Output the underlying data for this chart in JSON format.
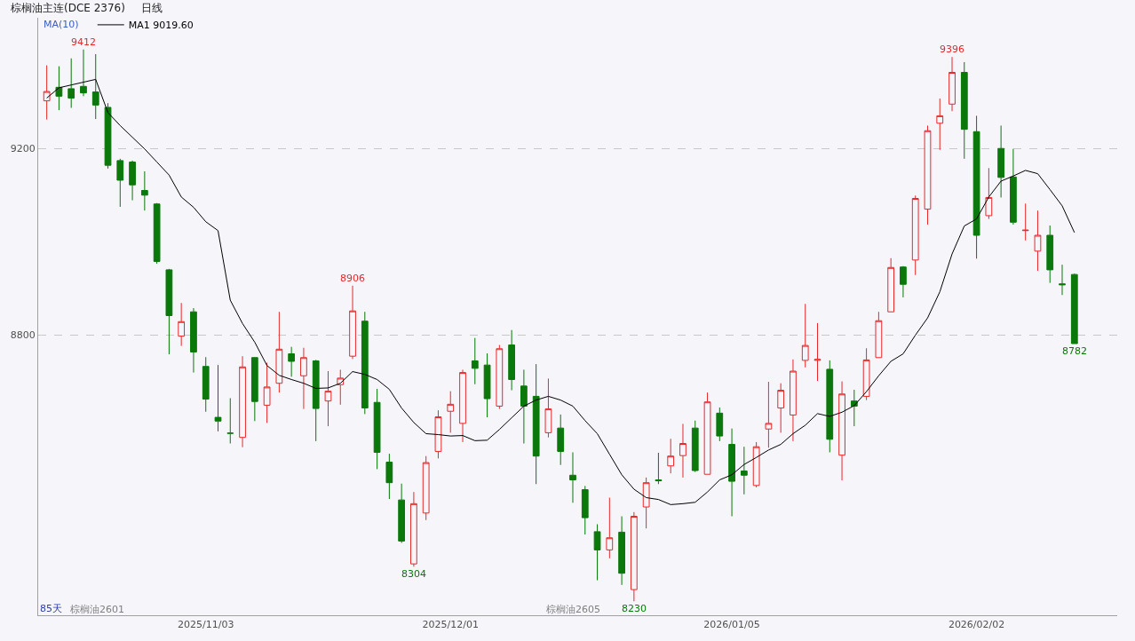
{
  "chart_data": {
    "type": "candlestick",
    "title": "棕榈油主连(DCE 2376)",
    "subtitle": "日线",
    "categories": [
      null,
      null,
      null,
      null,
      null,
      null,
      null,
      null,
      null,
      null,
      null,
      null,
      null,
      "2025/11/03",
      null,
      null,
      null,
      null,
      null,
      null,
      null,
      null,
      null,
      null,
      null,
      null,
      null,
      null,
      null,
      null,
      null,
      null,
      null,
      "2025/12/01",
      null,
      null,
      null,
      null,
      null,
      null,
      null,
      null,
      null,
      null,
      null,
      null,
      null,
      null,
      null,
      null,
      null,
      null,
      null,
      null,
      null,
      null,
      "2026/01/05",
      null,
      null,
      null,
      null,
      null,
      null,
      null,
      null,
      null,
      null,
      null,
      null,
      null,
      null,
      null,
      null,
      null,
      null,
      null,
      "2026/02/02",
      null,
      null,
      null,
      null,
      null,
      null,
      null,
      null
    ],
    "ohlc": [
      [
        9302,
        9378,
        9262,
        9322
      ],
      [
        9331,
        9376,
        9282,
        9312
      ],
      [
        9328,
        9393,
        9287,
        9308
      ],
      [
        9333,
        9412,
        9312,
        9319
      ],
      [
        9321,
        9402,
        9263,
        9293
      ],
      [
        9288,
        9297,
        9157,
        9164
      ],
      [
        9174,
        9178,
        9075,
        9132
      ],
      [
        9171,
        9174,
        9089,
        9122
      ],
      [
        9110,
        9151,
        9067,
        9100
      ],
      [
        9081,
        9083,
        8953,
        8958
      ],
      [
        8940,
        8942,
        8759,
        8842
      ],
      [
        8798,
        8869,
        8777,
        8829
      ],
      [
        8850,
        8858,
        8720,
        8764
      ],
      [
        8733,
        8753,
        8636,
        8663
      ],
      [
        8624,
        8736,
        8594,
        8616
      ],
      [
        8590,
        8665,
        8568,
        8590
      ],
      [
        8581,
        8755,
        8560,
        8732
      ],
      [
        8752,
        8752,
        8616,
        8658
      ],
      [
        8650,
        8741,
        8612,
        8689
      ],
      [
        8697,
        8850,
        8677,
        8770
      ],
      [
        8760,
        8775,
        8711,
        8744
      ],
      [
        8713,
        8773,
        8642,
        8752
      ],
      [
        8745,
        8747,
        8573,
        8643
      ],
      [
        8659,
        8723,
        8605,
        8680
      ],
      [
        8694,
        8726,
        8651,
        8708
      ],
      [
        8755,
        8906,
        8749,
        8852
      ],
      [
        8830,
        8850,
        8631,
        8644
      ],
      [
        8656,
        8685,
        8513,
        8549
      ],
      [
        8528,
        8546,
        8449,
        8484
      ],
      [
        8447,
        8482,
        8355,
        8359
      ],
      [
        8310,
        8464,
        8304,
        8439
      ],
      [
        8419,
        8541,
        8404,
        8527
      ],
      [
        8551,
        8639,
        8536,
        8625
      ],
      [
        8637,
        8680,
        8591,
        8652
      ],
      [
        8611,
        8726,
        8571,
        8720
      ],
      [
        8745,
        8794,
        8695,
        8729
      ],
      [
        8736,
        8761,
        8624,
        8664
      ],
      [
        8648,
        8779,
        8642,
        8771
      ],
      [
        8779,
        8811,
        8682,
        8705
      ],
      [
        8691,
        8726,
        8568,
        8648
      ],
      [
        8669,
        8738,
        8481,
        8541
      ],
      [
        8591,
        8707,
        8581,
        8642
      ],
      [
        8601,
        8630,
        8522,
        8551
      ],
      [
        8500,
        8549,
        8441,
        8490
      ],
      [
        8469,
        8477,
        8373,
        8409
      ],
      [
        8379,
        8395,
        8275,
        8340
      ],
      [
        8340,
        8452,
        8322,
        8366
      ],
      [
        8378,
        8412,
        8265,
        8290
      ],
      [
        8255,
        8421,
        8230,
        8412
      ],
      [
        8432,
        8495,
        8386,
        8484
      ],
      [
        8490,
        8548,
        8481,
        8488
      ],
      [
        8520,
        8578,
        8504,
        8541
      ],
      [
        8542,
        8610,
        8495,
        8568
      ],
      [
        8601,
        8617,
        8507,
        8510
      ],
      [
        8502,
        8677,
        8502,
        8657
      ],
      [
        8633,
        8645,
        8573,
        8584
      ],
      [
        8566,
        8600,
        8412,
        8487
      ],
      [
        8509,
        8561,
        8459,
        8500
      ],
      [
        8478,
        8571,
        8474,
        8561
      ],
      [
        8599,
        8700,
        8559,
        8611
      ],
      [
        8644,
        8697,
        8591,
        8682
      ],
      [
        8629,
        8748,
        8573,
        8723
      ],
      [
        8746,
        8867,
        8731,
        8778
      ],
      [
        8746,
        8826,
        8702,
        8748
      ],
      [
        8727,
        8746,
        8549,
        8577
      ],
      [
        8543,
        8701,
        8489,
        8674
      ],
      [
        8659,
        8683,
        8605,
        8648
      ],
      [
        8669,
        8772,
        8661,
        8747
      ],
      [
        8752,
        8850,
        8752,
        8831
      ],
      [
        8850,
        8965,
        8850,
        8945
      ],
      [
        8946,
        8948,
        8881,
        8909
      ],
      [
        8961,
        9099,
        8929,
        9093
      ],
      [
        9070,
        9249,
        9037,
        9238
      ],
      [
        9254,
        9307,
        9197,
        9270
      ],
      [
        9295,
        9396,
        9280,
        9363
      ],
      [
        9363,
        9385,
        9178,
        9241
      ],
      [
        9236,
        9270,
        8964,
        9014
      ],
      [
        9056,
        9158,
        9049,
        9095
      ],
      [
        9200,
        9249,
        9095,
        9138
      ],
      [
        9139,
        9199,
        9037,
        9042
      ],
      [
        9024,
        9082,
        9003,
        9025
      ],
      [
        8980,
        9067,
        8938,
        9014
      ],
      [
        9014,
        9035,
        8912,
        8940
      ],
      [
        8910,
        8951,
        8886,
        8908
      ],
      [
        8930,
        8932,
        8782,
        8782
      ]
    ],
    "colors": [
      "#e8282b",
      "#0a780a",
      "#0a780a",
      "#0a780a",
      "#0a780a",
      "#0a780a",
      "#0a780a",
      "#0a780a",
      "#0a780a",
      "#0a780a",
      "#0a780a",
      "#e8282b",
      "#0a780a",
      "#0a780a",
      "#0a780a",
      "#0a780a",
      "#e8282b",
      "#0a780a",
      "#e8282b",
      "#e8282b",
      "#0a780a",
      "#e8282b",
      "#0a780a",
      "#e8282b",
      "#e8282b",
      "#e8282b",
      "#0a780a",
      "#0a780a",
      "#0a780a",
      "#0a780a",
      "#e8282b",
      "#e8282b",
      "#e8282b",
      "#e8282b",
      "#e8282b",
      "#0a780a",
      "#0a780a",
      "#e8282b",
      "#0a780a",
      "#0a780a",
      "#0a780a",
      "#e8282b",
      "#0a780a",
      "#0a780a",
      "#0a780a",
      "#0a780a",
      "#e8282b",
      "#0a780a",
      "#e8282b",
      "#e8282b",
      "#0a780a",
      "#e8282b",
      "#e8282b",
      "#0a780a",
      "#e8282b",
      "#0a780a",
      "#0a780a",
      "#0a780a",
      "#e8282b",
      "#e8282b",
      "#e8282b",
      "#e8282b",
      "#e8282b",
      "#e8282b",
      "#0a780a",
      "#e8282b",
      "#0a780a",
      "#e8282b",
      "#e8282b",
      "#e8282b",
      "#0a780a",
      "#e8282b",
      "#e8282b",
      "#e8282b",
      "#e8282b",
      "#0a780a",
      "#0a780a",
      "#e8282b",
      "#0a780a",
      "#0a780a",
      "#e8282b",
      "#e8282b",
      "#0a780a",
      "#0a780a",
      "#0a780a"
    ],
    "series": [
      {
        "type": "line",
        "name": "MA1 9019.60",
        "color": "#000000",
        "values": [
          9308,
          9330,
          9336,
          9342,
          9348,
          9277,
          9249,
          9224,
          9199,
          9171,
          9143,
          9096,
          9074,
          9043,
          9024,
          8875,
          8825,
          8785,
          8735,
          8714,
          8705,
          8697,
          8686,
          8687,
          8697,
          8722,
          8716,
          8705,
          8684,
          8644,
          8613,
          8589,
          8587,
          8584,
          8585,
          8574,
          8575,
          8598,
          8623,
          8648,
          8661,
          8669,
          8661,
          8648,
          8617,
          8589,
          8545,
          8501,
          8470,
          8452,
          8448,
          8437,
          8439,
          8442,
          8464,
          8490,
          8501,
          8523,
          8538,
          8554,
          8566,
          8589,
          8607,
          8632,
          8626,
          8635,
          8649,
          8679,
          8713,
          8744,
          8760,
          8800,
          8837,
          8893,
          8974,
          9034,
          9049,
          9096,
          9130,
          9141,
          9153,
          9146,
          9112,
          9077,
          9020
        ]
      }
    ],
    "ylim": [
      8200,
      9480
    ],
    "yticks": [
      8800,
      9200
    ],
    "grid": "y",
    "legend": "top left",
    "annotations": [
      {
        "text": "9412",
        "y": 9412
      },
      {
        "text": "8906",
        "y": 8906
      },
      {
        "text": "8304",
        "y": 8304
      },
      {
        "text": "8230",
        "y": 8230
      },
      {
        "text": "9396",
        "y": 9396
      },
      {
        "text": "8782",
        "y": 8782
      },
      "MA(10)",
      "85天",
      "棕榈油2601",
      "棕榈油2605"
    ]
  }
}
